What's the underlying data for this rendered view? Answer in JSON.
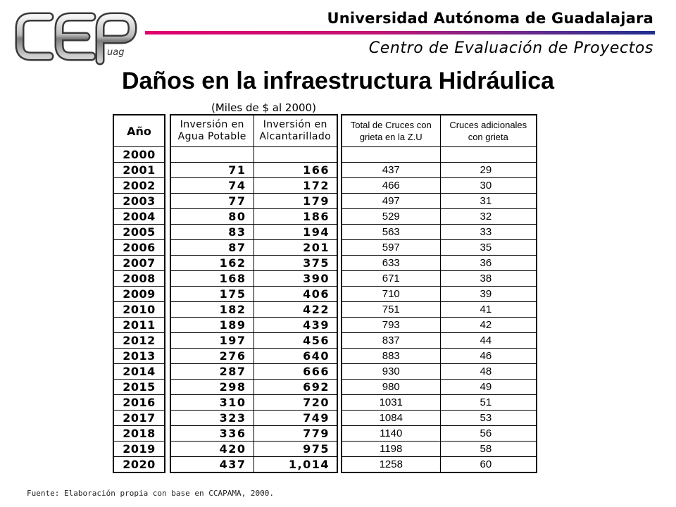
{
  "header": {
    "university": "Universidad Autónoma de Guadalajara",
    "center": "Centro de Evaluación de Proyectos",
    "logo_text": "CEP uag",
    "rule_colors": [
      "#e0006e",
      "#6a2a8c",
      "#1e2f8f"
    ]
  },
  "title": "Daños en la infraestructura Hidráulica",
  "unit_note": "(Miles de $ al 2000)",
  "table": {
    "headers": {
      "year": "Año",
      "water_line1": "Inversión en",
      "water_line2": "Agua Potable",
      "sewer_line1": "Inversión en",
      "sewer_line2": "Alcantarillado",
      "crossings_line1": "Total de Cruces con",
      "crossings_line2": "grieta en la Z.U",
      "additional_line1": "Cruces adicionales",
      "additional_line2": "con grieta"
    },
    "rows": [
      {
        "year": "2000",
        "water": "",
        "sewer": "",
        "crossings": "",
        "additional": ""
      },
      {
        "year": "2001",
        "water": "71",
        "sewer": "166",
        "crossings": "437",
        "additional": "29"
      },
      {
        "year": "2002",
        "water": "74",
        "sewer": "172",
        "crossings": "466",
        "additional": "30"
      },
      {
        "year": "2003",
        "water": "77",
        "sewer": "179",
        "crossings": "497",
        "additional": "31"
      },
      {
        "year": "2004",
        "water": "80",
        "sewer": "186",
        "crossings": "529",
        "additional": "32"
      },
      {
        "year": "2005",
        "water": "83",
        "sewer": "194",
        "crossings": "563",
        "additional": "33"
      },
      {
        "year": "2006",
        "water": "87",
        "sewer": "201",
        "crossings": "597",
        "additional": "35"
      },
      {
        "year": "2007",
        "water": "162",
        "sewer": "375",
        "crossings": "633",
        "additional": "36"
      },
      {
        "year": "2008",
        "water": "168",
        "sewer": "390",
        "crossings": "671",
        "additional": "38"
      },
      {
        "year": "2009",
        "water": "175",
        "sewer": "406",
        "crossings": "710",
        "additional": "39"
      },
      {
        "year": "2010",
        "water": "182",
        "sewer": "422",
        "crossings": "751",
        "additional": "41"
      },
      {
        "year": "2011",
        "water": "189",
        "sewer": "439",
        "crossings": "793",
        "additional": "42"
      },
      {
        "year": "2012",
        "water": "197",
        "sewer": "456",
        "crossings": "837",
        "additional": "44"
      },
      {
        "year": "2013",
        "water": "276",
        "sewer": "640",
        "crossings": "883",
        "additional": "46"
      },
      {
        "year": "2014",
        "water": "287",
        "sewer": "666",
        "crossings": "930",
        "additional": "48"
      },
      {
        "year": "2015",
        "water": "298",
        "sewer": "692",
        "crossings": "980",
        "additional": "49"
      },
      {
        "year": "2016",
        "water": "310",
        "sewer": "720",
        "crossings": "1031",
        "additional": "51"
      },
      {
        "year": "2017",
        "water": "323",
        "sewer": "749",
        "crossings": "1084",
        "additional": "53"
      },
      {
        "year": "2018",
        "water": "336",
        "sewer": "779",
        "crossings": "1140",
        "additional": "56"
      },
      {
        "year": "2019",
        "water": "420",
        "sewer": "975",
        "crossings": "1198",
        "additional": "58"
      },
      {
        "year": "2020",
        "water": "437",
        "sewer": "1,014",
        "crossings": "1258",
        "additional": "60"
      }
    ]
  },
  "source": "Fuente: Elaboración propia con base en CCAPAMA, 2000."
}
